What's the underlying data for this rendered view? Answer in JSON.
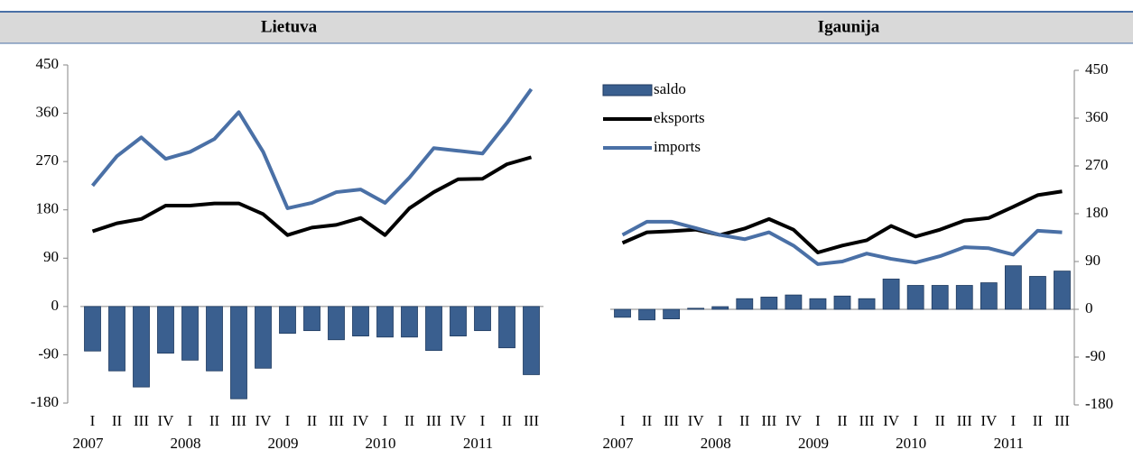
{
  "chart_data": [
    {
      "type": "combo",
      "title": "Lietuva",
      "yaxis_side": "left",
      "legend": false,
      "categories": [
        "I",
        "II",
        "III",
        "IV",
        "I",
        "II",
        "III",
        "IV",
        "I",
        "II",
        "III",
        "IV",
        "I",
        "II",
        "III",
        "IV",
        "I",
        "II",
        "III"
      ],
      "years": [
        "2007",
        "2008",
        "2009",
        "2010",
        "2011"
      ],
      "ylim": [
        -180,
        450
      ],
      "yticks": [
        -180,
        -90,
        0,
        90,
        180,
        270,
        360,
        450
      ],
      "series": [
        {
          "kind": "bar",
          "color": "#3a5f8f",
          "values": [
            -83,
            -120,
            -150,
            -87,
            -100,
            -120,
            -172,
            -115,
            -50,
            -45,
            -62,
            -55,
            -57,
            -57,
            -82,
            -55,
            -45,
            -77,
            -127
          ]
        },
        {
          "kind": "line",
          "color": "#000000",
          "values": [
            140,
            155,
            163,
            188,
            188,
            192,
            192,
            172,
            133,
            147,
            152,
            165,
            133,
            183,
            213,
            237,
            238,
            265,
            278
          ]
        },
        {
          "kind": "line",
          "color": "#4a70a6",
          "values": [
            225,
            280,
            315,
            275,
            288,
            312,
            362,
            288,
            183,
            193,
            213,
            218,
            193,
            240,
            295,
            290,
            285,
            342,
            405
          ]
        }
      ]
    },
    {
      "type": "combo",
      "title": "Igaunija",
      "yaxis_side": "right",
      "legend": true,
      "categories": [
        "I",
        "II",
        "III",
        "IV",
        "I",
        "II",
        "III",
        "IV",
        "I",
        "II",
        "III",
        "IV",
        "I",
        "II",
        "III",
        "IV",
        "I",
        "II",
        "III"
      ],
      "years": [
        "2007",
        "2008",
        "2009",
        "2010",
        "2011"
      ],
      "ylim": [
        -180,
        450
      ],
      "yticks": [
        -180,
        -90,
        0,
        90,
        180,
        270,
        360,
        450
      ],
      "series": [
        {
          "name": "saldo",
          "kind": "bar",
          "color": "#3a5f8f",
          "values": [
            -15,
            -20,
            -18,
            2,
            5,
            20,
            23,
            27,
            20,
            25,
            20,
            57,
            45,
            45,
            45,
            50,
            82,
            62,
            72
          ]
        },
        {
          "name": "eksports",
          "kind": "line",
          "color": "#000000",
          "values": [
            125,
            145,
            147,
            150,
            140,
            152,
            170,
            150,
            107,
            120,
            130,
            157,
            137,
            150,
            167,
            172,
            193,
            215,
            222
          ]
        },
        {
          "name": "imports",
          "kind": "line",
          "color": "#4a70a6",
          "values": [
            140,
            165,
            165,
            153,
            140,
            132,
            145,
            120,
            85,
            90,
            105,
            95,
            88,
            100,
            117,
            115,
            103,
            148,
            145
          ]
        }
      ]
    }
  ]
}
